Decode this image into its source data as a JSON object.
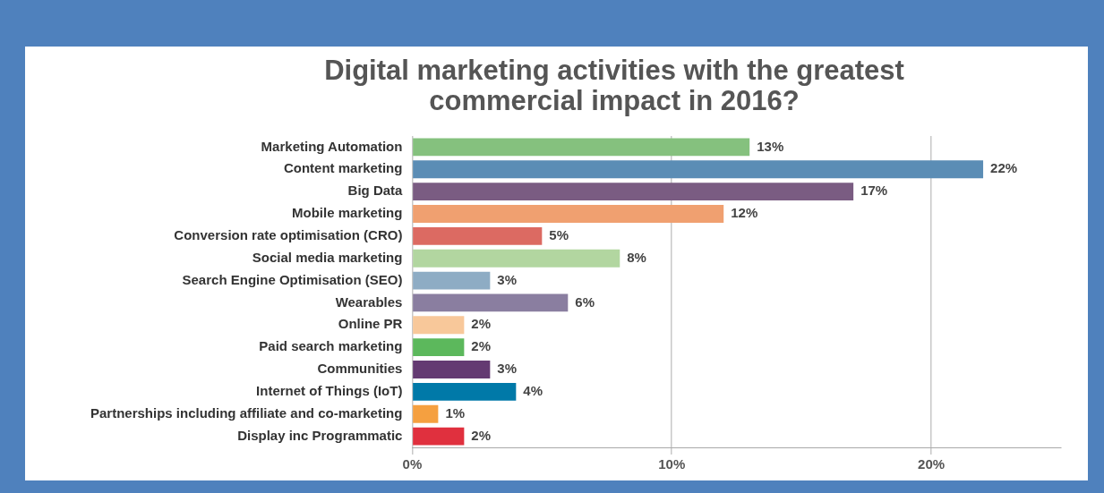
{
  "chart_data": {
    "type": "bar",
    "orientation": "horizontal",
    "title": "Digital marketing activities with the greatest commercial impact in 2016?",
    "categories": [
      "Marketing Automation",
      "Content marketing",
      "Big Data",
      "Mobile marketing",
      "Conversion rate optimisation (CRO)",
      "Social media marketing",
      "Search Engine Optimisation (SEO)",
      "Wearables",
      "Online PR",
      "Paid search marketing",
      "Communities",
      "Internet of Things (IoT)",
      "Partnerships including affiliate and co-marketing",
      "Display inc Programmatic"
    ],
    "values": [
      13,
      22,
      17,
      12,
      5,
      8,
      3,
      6,
      2,
      2,
      3,
      4,
      1,
      2
    ],
    "value_labels": [
      "13%",
      "22%",
      "17%",
      "12%",
      "5%",
      "8%",
      "3%",
      "6%",
      "2%",
      "2%",
      "3%",
      "4%",
      "1%",
      "2%"
    ],
    "colors": [
      "#85c17e",
      "#5b8db5",
      "#7a5c82",
      "#f0a070",
      "#dc6a62",
      "#b2d6a0",
      "#8eacc4",
      "#8a7ea0",
      "#f8c89a",
      "#5cb85c",
      "#643a72",
      "#0079a8",
      "#f5a040",
      "#e0303e"
    ],
    "xlim": [
      0,
      25
    ],
    "xticks": [
      {
        "value": 0,
        "label": "0%"
      },
      {
        "value": 10,
        "label": "10%"
      },
      {
        "value": 20,
        "label": "20%"
      }
    ],
    "grid": "x",
    "legend": false
  }
}
